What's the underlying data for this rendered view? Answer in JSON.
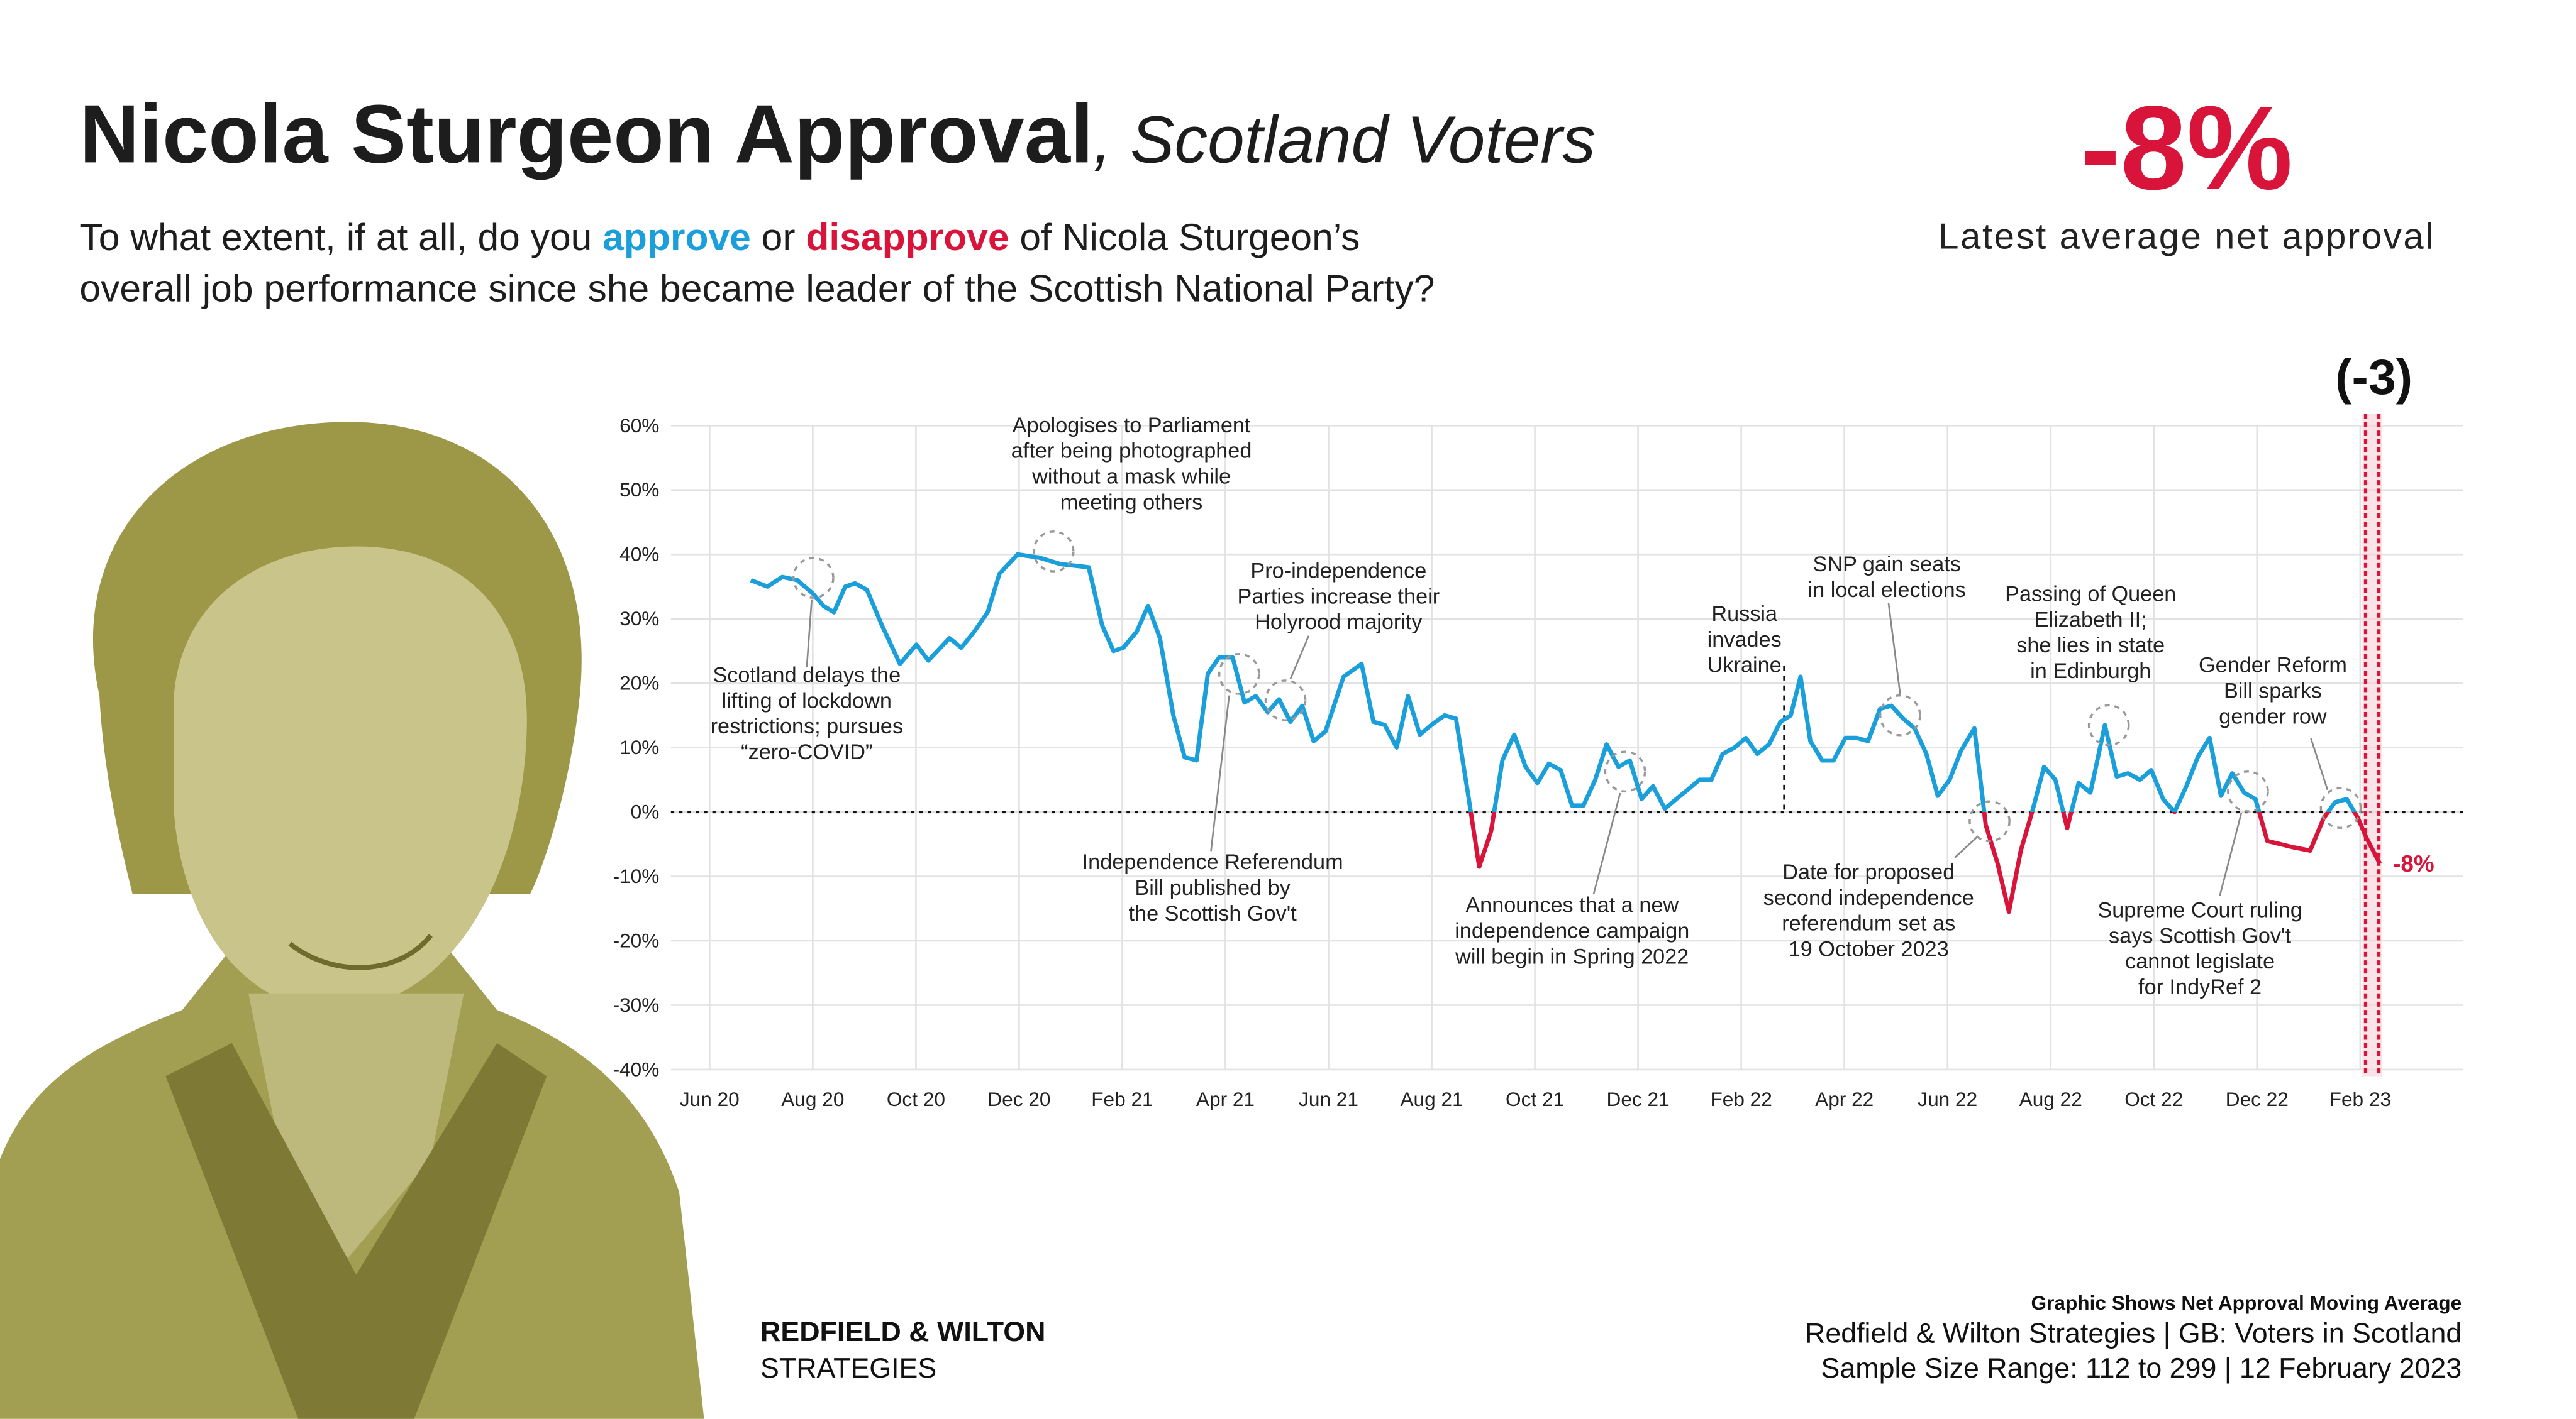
{
  "chart_data": {
    "type": "line",
    "title": "Nicola Sturgeon Approval",
    "title_suffix": ", Scotland Voters",
    "subtitle_lines": [
      [
        "To what extent, if at all, do you ",
        "approve",
        " or ",
        "disapprove",
        " of Nicola Sturgeon’s"
      ],
      [
        "overall job performance since she became leader of the Scottish National Party?"
      ]
    ],
    "headline": "-8%",
    "headline_caption": "Latest average net approval",
    "change_label": "(-3)",
    "latest_label": "-8%",
    "xlim": [
      -0.75,
      34
    ],
    "xticks": [
      {
        "value": 0,
        "label": "Jun 20"
      },
      {
        "value": 2,
        "label": "Aug 20"
      },
      {
        "value": 4,
        "label": "Oct 20"
      },
      {
        "value": 6,
        "label": "Dec 20"
      },
      {
        "value": 8,
        "label": "Feb 21"
      },
      {
        "value": 10,
        "label": "Apr 21"
      },
      {
        "value": 12,
        "label": "Jun 21"
      },
      {
        "value": 14,
        "label": "Aug 21"
      },
      {
        "value": 16,
        "label": "Oct 21"
      },
      {
        "value": 18,
        "label": "Dec 21"
      },
      {
        "value": 20,
        "label": "Feb 22"
      },
      {
        "value": 22,
        "label": "Apr 22"
      },
      {
        "value": 24,
        "label": "Jun 22"
      },
      {
        "value": 26,
        "label": "Aug 22"
      },
      {
        "value": 28,
        "label": "Oct 22"
      },
      {
        "value": 30,
        "label": "Dec 22"
      },
      {
        "value": 32,
        "label": "Feb 23"
      }
    ],
    "ylim": [
      -40,
      60
    ],
    "yticks": [
      {
        "value": 60,
        "label": "60%"
      },
      {
        "value": 50,
        "label": "50%"
      },
      {
        "value": 40,
        "label": "40%"
      },
      {
        "value": 30,
        "label": "30%"
      },
      {
        "value": 20,
        "label": "20%"
      },
      {
        "value": 10,
        "label": "10%"
      },
      {
        "value": 0,
        "label": "0%"
      },
      {
        "value": -10,
        "label": "-10%"
      },
      {
        "value": -20,
        "label": "-20%"
      },
      {
        "value": -30,
        "label": "-30%"
      },
      {
        "value": -40,
        "label": "-40%"
      }
    ],
    "grid": true,
    "positive_color": "#1a9fdb",
    "negative_color": "#d9143a",
    "x": [
      0.8,
      1.12,
      1.41,
      1.7,
      1.99,
      2.21,
      2.41,
      2.63,
      2.82,
      3.05,
      3.34,
      3.69,
      4.01,
      4.24,
      4.65,
      4.88,
      5.13,
      5.39,
      5.62,
      5.97,
      6.39,
      6.8,
      7.35,
      7.61,
      7.83,
      8.02,
      8.28,
      8.5,
      8.73,
      8.99,
      9.21,
      9.44,
      9.66,
      9.88,
      10.14,
      10.37,
      10.59,
      10.82,
      11.04,
      11.26,
      11.49,
      11.71,
      11.94,
      12.29,
      12.64,
      12.87,
      13.09,
      13.32,
      13.54,
      13.77,
      13.99,
      14.25,
      14.47,
      14.7,
      14.92,
      15.15,
      15.37,
      15.6,
      15.82,
      16.05,
      16.27,
      16.5,
      16.72,
      16.94,
      17.17,
      17.39,
      17.62,
      17.84,
      18.07,
      18.29,
      18.52,
      18.74,
      18.97,
      19.19,
      19.42,
      19.64,
      19.87,
      20.09,
      20.31,
      20.54,
      20.76,
      20.96,
      21.15,
      21.34,
      21.57,
      21.79,
      22.02,
      22.24,
      22.46,
      22.69,
      22.91,
      23.14,
      23.36,
      23.59,
      23.81,
      24.04,
      24.26,
      24.52,
      24.74,
      24.97,
      25.19,
      25.42,
      25.64,
      25.87,
      26.09,
      26.32,
      26.54,
      26.77,
      27.05,
      27.28,
      27.5,
      27.73,
      27.95,
      28.18,
      28.4,
      28.63,
      28.85,
      29.08,
      29.3,
      29.52,
      29.75,
      29.97,
      30.2,
      30.71,
      31.03,
      31.29,
      31.51,
      31.74,
      31.96,
      32.12,
      32.38
    ],
    "values": [
      36,
      35,
      36.5,
      36,
      34,
      32,
      31,
      35,
      35.5,
      34.5,
      29,
      23,
      26,
      23.5,
      27,
      25.5,
      28,
      31,
      37,
      40,
      39.5,
      38.5,
      38,
      29,
      25,
      25.5,
      28,
      32,
      27,
      15,
      8.5,
      8,
      21.5,
      24,
      24,
      17,
      18,
      15.5,
      17.5,
      14,
      16.5,
      11,
      12.5,
      21,
      23,
      14,
      13.5,
      10,
      18,
      12,
      13.5,
      15,
      14.5,
      3,
      -8.5,
      -3,
      8,
      12,
      7,
      4.5,
      7.5,
      6.5,
      1,
      1,
      5,
      10.5,
      7,
      8,
      2,
      4,
      0.5,
      2,
      3.5,
      5,
      5,
      9,
      10,
      11.5,
      9,
      10.5,
      14,
      15,
      21,
      11,
      8,
      8,
      11.5,
      11.5,
      11,
      16,
      16.5,
      14.5,
      13,
      9,
      2.5,
      5,
      9.5,
      13,
      -2,
      -8,
      -15.5,
      -6,
      0,
      7,
      5,
      -2.5,
      4.5,
      3,
      13.5,
      5.5,
      6,
      5,
      6.5,
      2,
      0,
      4,
      8.5,
      11.5,
      2.5,
      6,
      3,
      2,
      -4.5,
      -5.5,
      -6,
      -1,
      1.5,
      2,
      -1,
      -4,
      -8
    ],
    "annotations": [
      [
        "Scotland delays the",
        "lifting of lockdown",
        "restrictions; pursues",
        "“zero-COVID”"
      ],
      [
        "Apologises to Parliament",
        "after being photographed",
        "without a mask while",
        "meeting others"
      ],
      [
        "Pro-independence",
        "Parties increase their",
        "Holyrood majority"
      ],
      [
        "Independence Referendum",
        "Bill published by",
        "the Scottish Gov't"
      ],
      [
        "Russia",
        "invades",
        "Ukraine"
      ],
      [
        "SNP gain seats",
        "in local elections"
      ],
      [
        "Passing of Queen",
        "Elizabeth II;",
        "she lies in state",
        "in Edinburgh"
      ],
      [
        "Announces that a new",
        "independence campaign",
        "will begin in Spring 2022"
      ],
      [
        "Date for proposed",
        "second independence",
        "referendum set as",
        "19 October 2023"
      ],
      [
        "Gender Reform",
        "Bill sparks",
        "gender row"
      ],
      [
        "Supreme Court ruling",
        "says Scottish Gov't",
        "cannot legislate",
        "for IndyRef 2"
      ]
    ],
    "brand_lines": [
      "REDFIELD & WILTON",
      "STRATEGIES"
    ],
    "source_lines": [
      "Graphic Shows Net Approval Moving Average",
      "Redfield & Wilton Strategies | GB: Voters in Scotland",
      "Sample Size Range: 112 to 299 | 12 February 2023"
    ]
  }
}
